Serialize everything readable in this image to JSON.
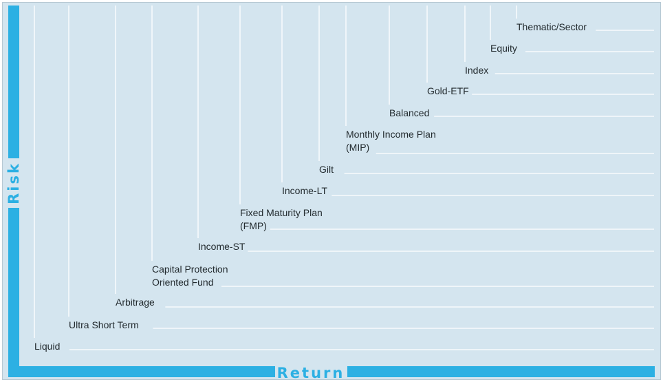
{
  "axes": {
    "y_label": "Risk",
    "x_label": "Return"
  },
  "categories": [
    {
      "lines": [
        "Liquid"
      ]
    },
    {
      "lines": [
        "Ultra Short Term"
      ]
    },
    {
      "lines": [
        "Arbitrage"
      ]
    },
    {
      "lines": [
        "Capital Protection",
        "Oriented Fund"
      ]
    },
    {
      "lines": [
        "Income-ST"
      ]
    },
    {
      "lines": [
        "Fixed Maturity Plan",
        "(FMP)"
      ]
    },
    {
      "lines": [
        "Income-LT"
      ]
    },
    {
      "lines": [
        "Gilt"
      ]
    },
    {
      "lines": [
        "Monthly Income Plan",
        "(MIP)"
      ]
    },
    {
      "lines": [
        "Balanced"
      ]
    },
    {
      "lines": [
        "Gold-ETF"
      ]
    },
    {
      "lines": [
        "Index"
      ]
    },
    {
      "lines": [
        "Equity"
      ]
    },
    {
      "lines": [
        "Thematic/Sector"
      ]
    }
  ],
  "colors": {
    "background": "#d4e5ef",
    "axis": "#2cb0e3",
    "guide_lines": "#ffffff",
    "text": "#222a2e"
  }
}
